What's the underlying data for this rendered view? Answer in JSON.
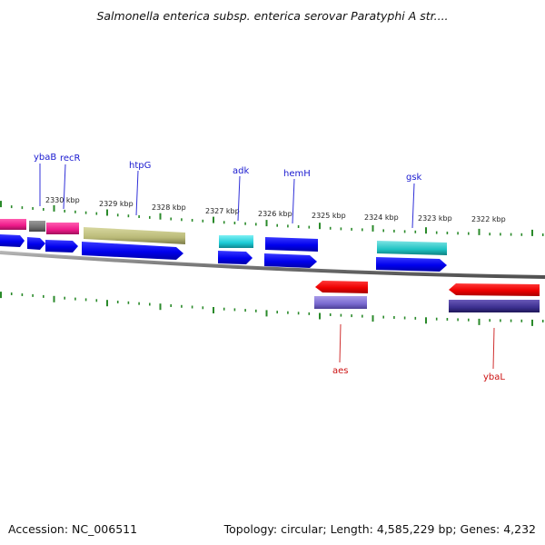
{
  "title": "Salmonella enterica subsp. enterica serovar Paratyphi A str....",
  "footer": {
    "accession": "Accession: NC_006511",
    "summary": "Topology: circular; Length: 4,585,229 bp; Genes: 4,232"
  },
  "colors": {
    "forward_label": "#1a1ad0",
    "reverse_label": "#cc1111",
    "cds_blue": "#1414e6",
    "cds_red": "#ee1111",
    "tick_green": "#2a8a2a",
    "backbone": "#8a8a8a"
  },
  "scale_labels": [
    "2330 kbp",
    "2329 kbp",
    "2328 kbp",
    "2327 kbp",
    "2326 kbp",
    "2325 kbp",
    "2324 kbp",
    "2323 kbp",
    "2322 kbp"
  ],
  "genes_forward": [
    "ybaB",
    "recR",
    "htpG",
    "adk",
    "hemH",
    "gsk"
  ],
  "genes_reverse": [
    "aes",
    "ybaL"
  ]
}
